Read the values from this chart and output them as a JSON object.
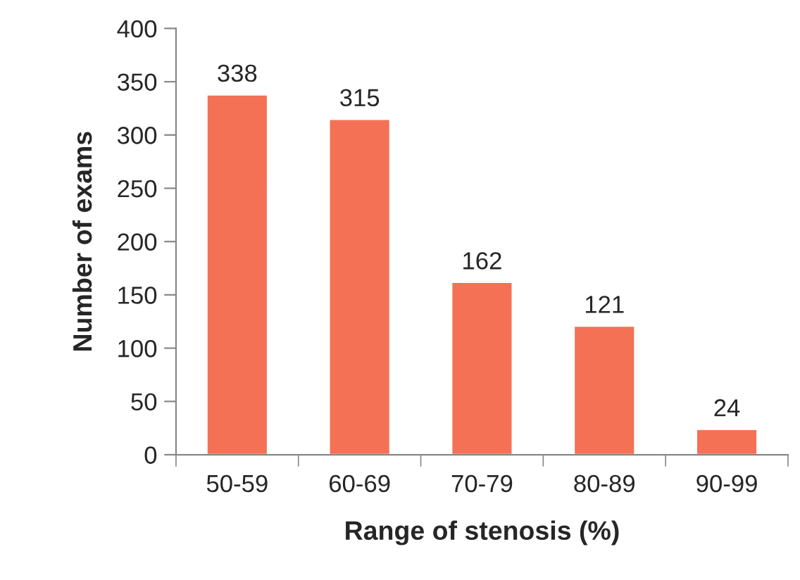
{
  "chart_data": {
    "type": "bar",
    "xlabel": "Range of stenosis (%)",
    "ylabel": "Number of exams",
    "categories": [
      "50-59",
      "60-69",
      "70-79",
      "80-89",
      "90-99"
    ],
    "values": [
      338,
      315,
      162,
      121,
      24
    ],
    "color": "#f47155",
    "ylim": [
      0,
      400
    ],
    "yticks": [
      0,
      50,
      100,
      150,
      200,
      250,
      300,
      350,
      400
    ],
    "data_labels": true,
    "grid": false,
    "legend": false
  }
}
